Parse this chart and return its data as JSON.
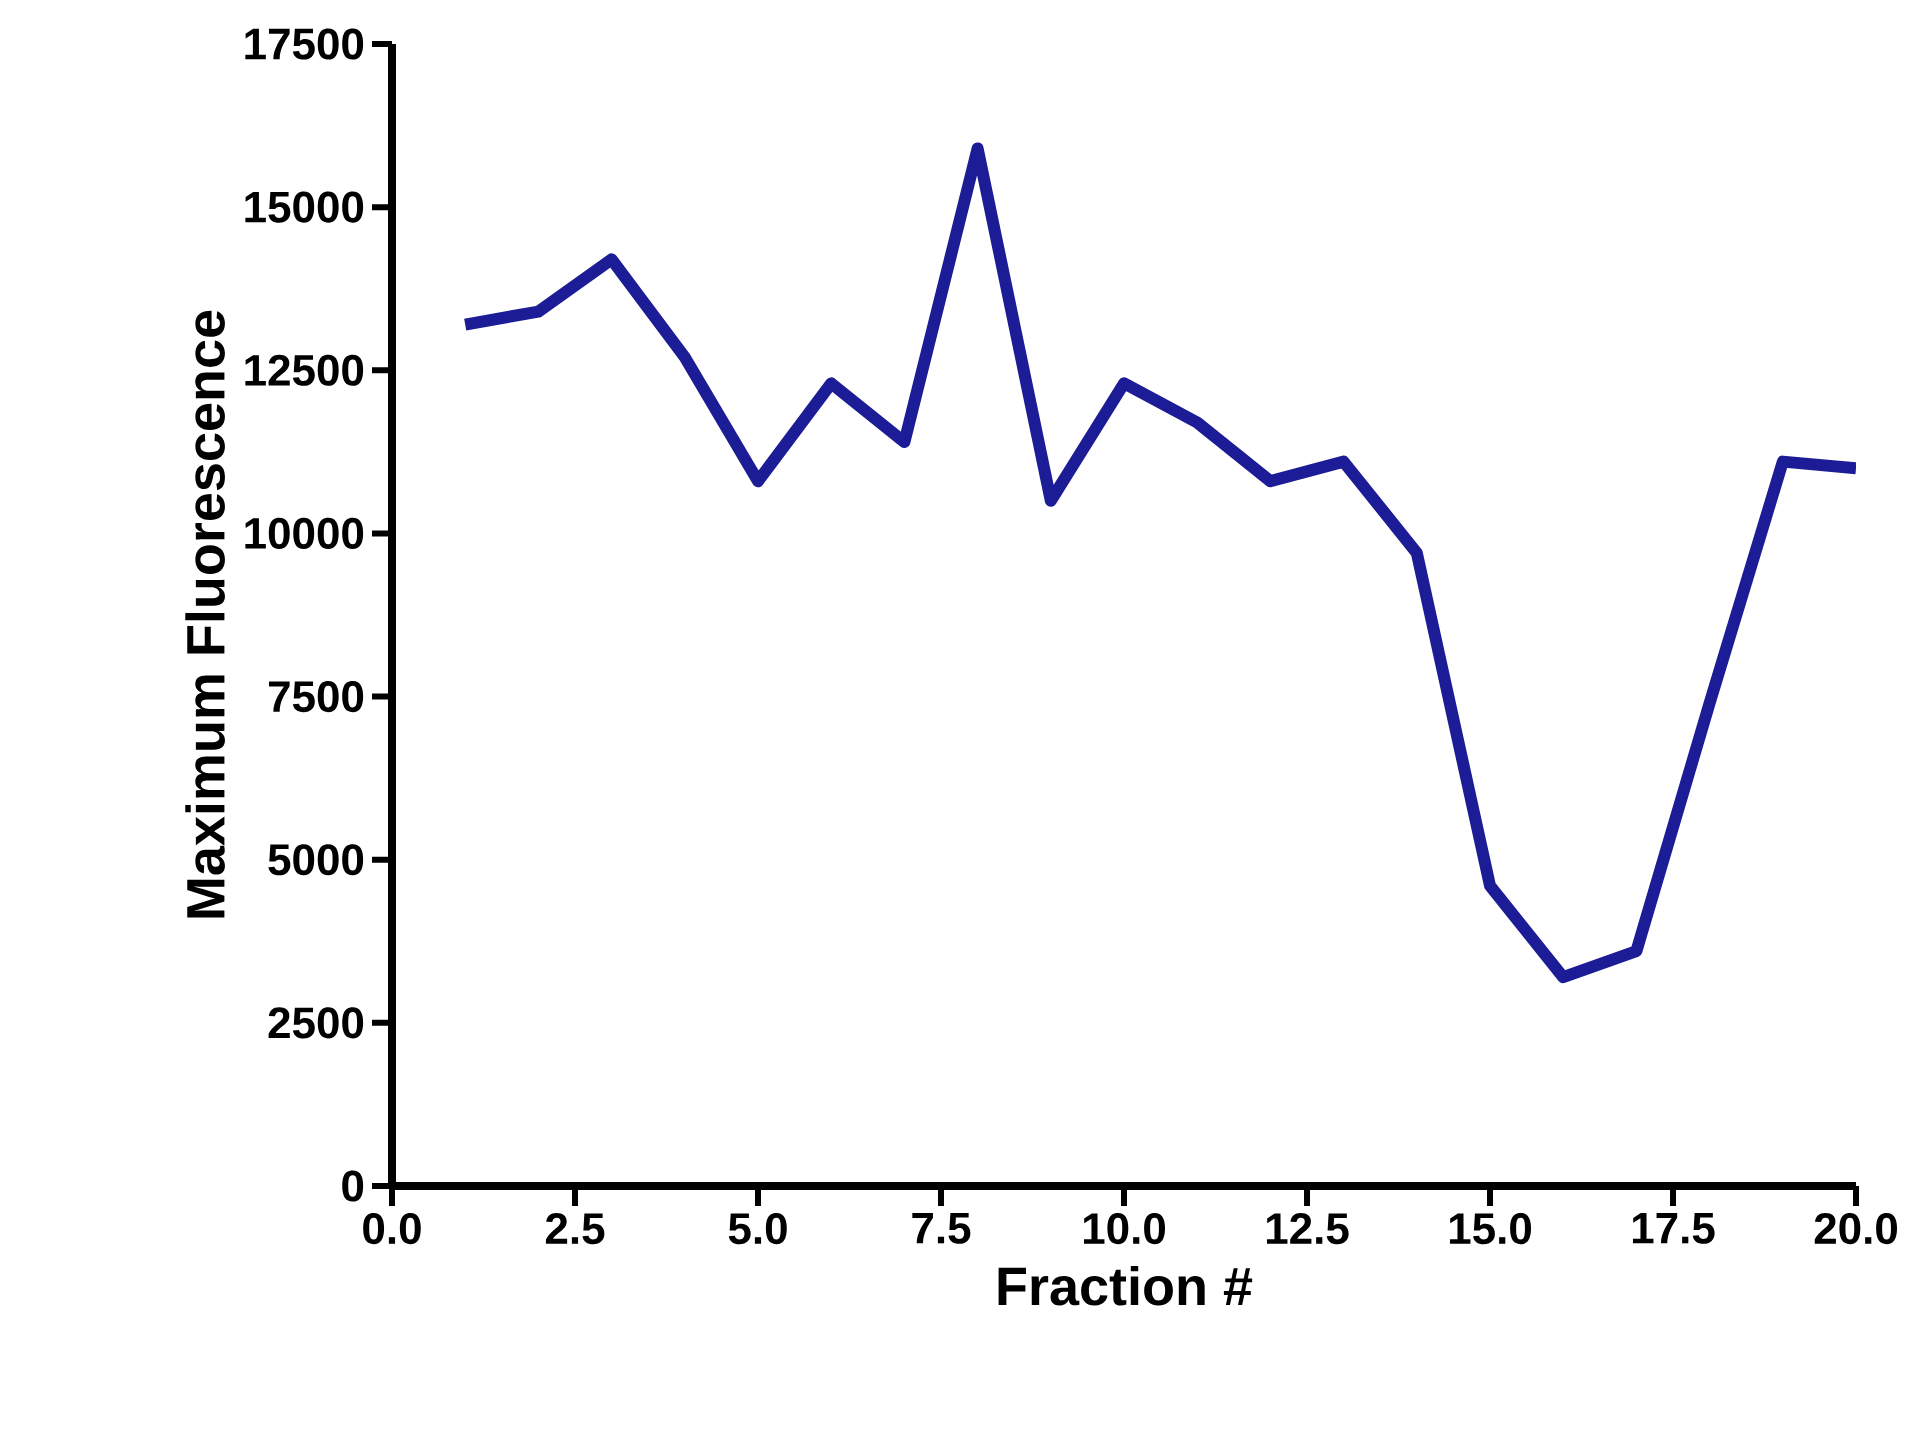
{
  "chart_data": {
    "type": "line",
    "xlabel": "Fraction #",
    "ylabel": "Maximum Fluorescence",
    "x": [
      1,
      2,
      3,
      4,
      5,
      6,
      7,
      8,
      9,
      10,
      11,
      12,
      13,
      14,
      15,
      16,
      17,
      18,
      19,
      20
    ],
    "series": [
      {
        "color": "#1c1c96",
        "values": [
          13200,
          13400,
          14200,
          12700,
          10800,
          12300,
          11400,
          15900,
          10500,
          12300,
          11700,
          10800,
          11100,
          9700,
          4600,
          3200,
          3600,
          7400,
          11100,
          11000
        ]
      }
    ],
    "xlim": [
      0,
      20
    ],
    "ylim": [
      0,
      17500
    ],
    "xticks": [
      {
        "value": 0,
        "label": "0.0"
      },
      {
        "value": 2.5,
        "label": "2.5"
      },
      {
        "value": 5,
        "label": "5.0"
      },
      {
        "value": 7.5,
        "label": "7.5"
      },
      {
        "value": 10,
        "label": "10.0"
      },
      {
        "value": 12.5,
        "label": "12.5"
      },
      {
        "value": 15,
        "label": "15.0"
      },
      {
        "value": 17.5,
        "label": "17.5"
      },
      {
        "value": 20,
        "label": "20.0"
      }
    ],
    "yticks": [
      0,
      2500,
      5000,
      7500,
      10000,
      12500,
      15000,
      17500
    ],
    "grid": false,
    "marker": "none",
    "line_style": "solid"
  }
}
